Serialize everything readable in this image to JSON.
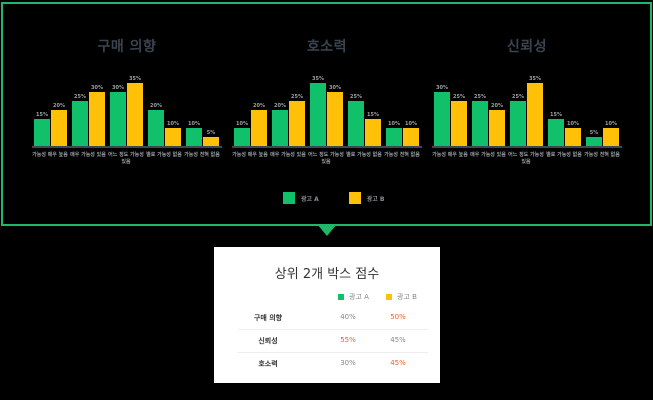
{
  "colors": {
    "frame": "#1fb86a",
    "ad_a": "#10c06a",
    "ad_b": "#ffc107",
    "highlight": "#f05a28",
    "normal": "#888888"
  },
  "legend": {
    "a": "광고 A",
    "b": "광고 B"
  },
  "chart_data": [
    {
      "type": "bar",
      "title": "구매 의향",
      "categories": [
        "가능성 매우 높음",
        "매우 가능성 있음",
        "어느 정도 가능성 있음",
        "별로 가능성 없음",
        "가능성 전혀 없음"
      ],
      "series": [
        {
          "name": "광고 A",
          "values": [
            15,
            25,
            30,
            20,
            10
          ]
        },
        {
          "name": "광고 B",
          "values": [
            20,
            30,
            35,
            10,
            5
          ]
        }
      ],
      "ylabel": "",
      "xlabel": "",
      "ylim": [
        0,
        40
      ],
      "grid": false,
      "legend_position": "bottom"
    },
    {
      "type": "bar",
      "title": "호소력",
      "categories": [
        "가능성 매우 높음",
        "매우 가능성 있음",
        "어느 정도 가능성 있음",
        "별로 가능성 없음",
        "가능성 전혀 없음"
      ],
      "series": [
        {
          "name": "광고 A",
          "values": [
            10,
            20,
            35,
            25,
            10
          ]
        },
        {
          "name": "광고 B",
          "values": [
            20,
            25,
            30,
            15,
            10
          ]
        }
      ],
      "ylabel": "",
      "xlabel": "",
      "ylim": [
        0,
        40
      ],
      "grid": false,
      "legend_position": "bottom"
    },
    {
      "type": "bar",
      "title": "신뢰성",
      "categories": [
        "가능성 매우 높음",
        "매우 가능성 있음",
        "어느 정도 가능성 있음",
        "별로 가능성 없음",
        "가능성 전혀 없음"
      ],
      "series": [
        {
          "name": "광고 A",
          "values": [
            30,
            25,
            25,
            15,
            5
          ]
        },
        {
          "name": "광고 B",
          "values": [
            25,
            20,
            35,
            10,
            10
          ]
        }
      ],
      "ylabel": "",
      "xlabel": "",
      "ylim": [
        0,
        40
      ],
      "grid": false,
      "legend_position": "bottom"
    },
    {
      "type": "table",
      "title": "상위 2개 박스 점수",
      "columns": [
        "",
        "광고 A",
        "광고 B"
      ],
      "rows": [
        {
          "label": "구매 의향",
          "a": "40%",
          "b": "50%",
          "winner": "b"
        },
        {
          "label": "신뢰성",
          "a": "55%",
          "b": "45%",
          "winner": "a"
        },
        {
          "label": "호소력",
          "a": "30%",
          "b": "45%",
          "winner": "b"
        }
      ]
    }
  ]
}
